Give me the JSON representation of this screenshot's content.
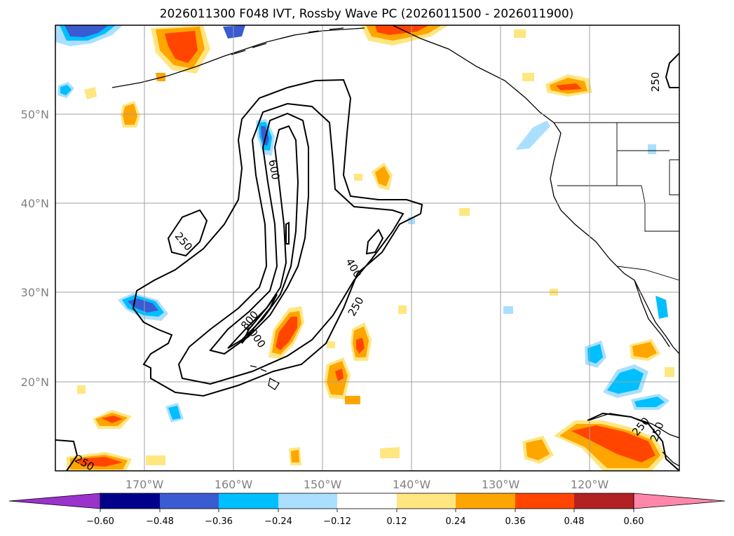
{
  "title": "2026011300 F048 IVT, Rossby Wave PC (2026011500 - 2026011900)",
  "lat_ticks": [
    "50°N",
    "40°N",
    "30°N",
    "20°N"
  ],
  "lon_ticks": [
    "170°W",
    "160°W",
    "150°W",
    "140°W",
    "130°W",
    "120°W"
  ],
  "colorbar": {
    "ticks": [
      "−0.60",
      "−0.48",
      "−0.36",
      "−0.24",
      "−0.12",
      "0.12",
      "0.24",
      "0.36",
      "0.48",
      "0.60"
    ],
    "colors": [
      "#9933cc",
      "#00008b",
      "#3a5bd1",
      "#00bfff",
      "#aadfff",
      "#ffffff",
      "#ffe680",
      "#ffa500",
      "#ff4500",
      "#b22222",
      "#ff88aa"
    ]
  },
  "contour_labels": [
    "250",
    "250",
    "400",
    "600",
    "800",
    "1000",
    "250",
    "250",
    "250",
    "250"
  ],
  "map": {
    "lon_range": [
      -180,
      -110
    ],
    "lat_range": [
      10,
      60
    ],
    "gridlines": true,
    "features": [
      "coastlines",
      "country borders",
      "state borders"
    ]
  }
}
